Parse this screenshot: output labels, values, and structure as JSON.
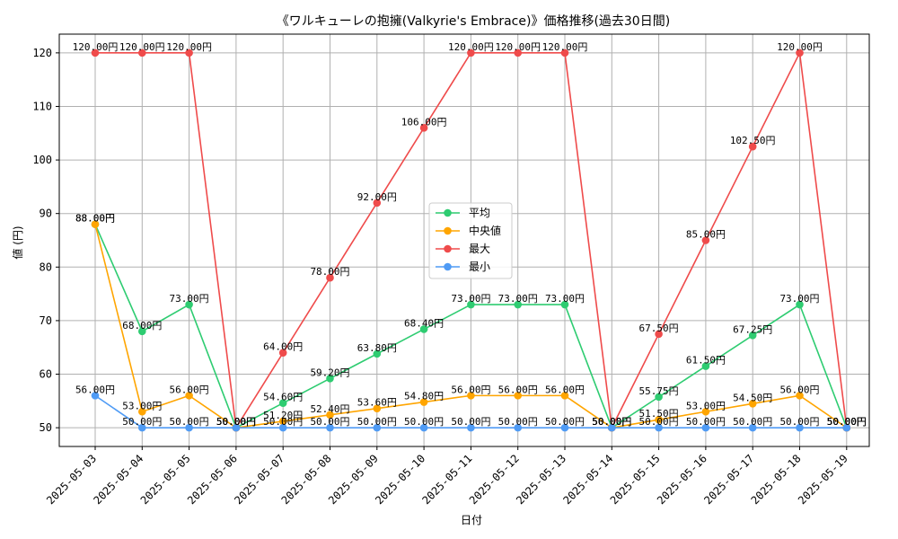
{
  "chart_data": {
    "type": "line",
    "title": "《ワルキューレの抱擁(Valkyrie's Embrace)》価格推移(過去30日間)",
    "xlabel": "日付",
    "ylabel": "値 (円)",
    "ylim": [
      46.5,
      123.5
    ],
    "yticks": [
      50,
      60,
      70,
      80,
      90,
      100,
      110,
      120
    ],
    "grid": true,
    "legend_position": "center",
    "value_suffix": "円",
    "categories": [
      "2025-05-03",
      "2025-05-04",
      "2025-05-05",
      "2025-05-06",
      "2025-05-07",
      "2025-05-08",
      "2025-05-09",
      "2025-05-10",
      "2025-05-11",
      "2025-05-12",
      "2025-05-13",
      "2025-05-14",
      "2025-05-15",
      "2025-05-16",
      "2025-05-17",
      "2025-05-18",
      "2025-05-19"
    ],
    "series": [
      {
        "name": "平均",
        "color": "#2ecc71",
        "values": [
          88.0,
          68.0,
          73.0,
          50.0,
          54.6,
          59.2,
          63.8,
          68.4,
          73.0,
          73.0,
          73.0,
          50.0,
          55.75,
          61.5,
          67.25,
          73.0,
          50.0
        ]
      },
      {
        "name": "中央値",
        "color": "#ffa500",
        "values": [
          88.0,
          53.0,
          56.0,
          50.0,
          51.2,
          52.4,
          53.6,
          54.8,
          56.0,
          56.0,
          56.0,
          50.0,
          51.5,
          53.0,
          54.5,
          56.0,
          50.0
        ]
      },
      {
        "name": "最大",
        "color": "#ef4b4b",
        "values": [
          120.0,
          120.0,
          120.0,
          50.0,
          64.0,
          78.0,
          92.0,
          106.0,
          120.0,
          120.0,
          120.0,
          50.0,
          67.5,
          85.0,
          102.5,
          120.0,
          50.0
        ]
      },
      {
        "name": "最小",
        "color": "#4f9bf5",
        "values": [
          56.0,
          50.0,
          50.0,
          50.0,
          50.0,
          50.0,
          50.0,
          50.0,
          50.0,
          50.0,
          50.0,
          50.0,
          50.0,
          50.0,
          50.0,
          50.0,
          50.0
        ]
      }
    ]
  }
}
